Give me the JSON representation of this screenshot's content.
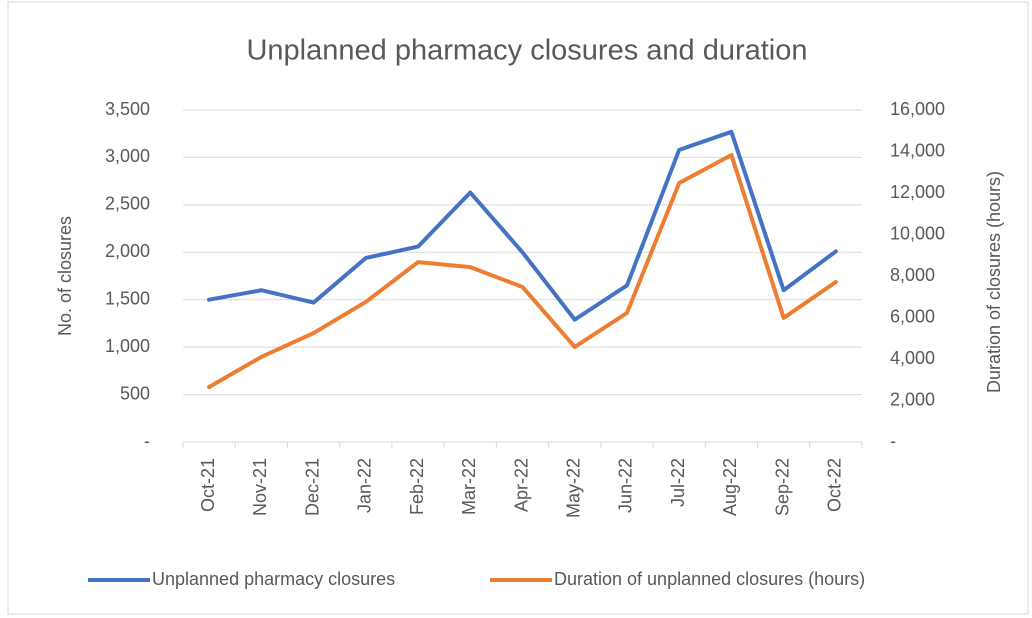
{
  "chart_data": {
    "type": "line",
    "title": "Unplanned pharmacy closures and duration",
    "y_label": "No. of closures",
    "y2_label": "Duration of closures (hours)",
    "categories": [
      "Oct-21",
      "Nov-21",
      "Dec-21",
      "Jan-22",
      "Feb-22",
      "Mar-22",
      "Apr-22",
      "May-22",
      "Jun-22",
      "Jul-22",
      "Aug-22",
      "Sep-22",
      "Oct-22"
    ],
    "series": [
      {
        "name": "Unplanned pharmacy closures",
        "color": "#4472c4",
        "axis": "y",
        "values": [
          1500,
          1600,
          1470,
          1940,
          2060,
          2630,
          2000,
          1290,
          1650,
          3080,
          3270,
          1600,
          2010
        ]
      },
      {
        "name": "Duration of unplanned closures (hours)",
        "color": "#ed7d31",
        "axis": "y2",
        "values": [
          2650,
          4100,
          5250,
          6750,
          8670,
          8430,
          7470,
          4580,
          6220,
          12480,
          13830,
          5980,
          7710
        ]
      }
    ],
    "ylim": [
      0,
      3500
    ],
    "yticks": [
      {
        "value": 0,
        "label": "-"
      },
      500,
      {
        "value": 1000,
        "label": "1,000"
      },
      {
        "value": 1500,
        "label": "1,500"
      },
      {
        "value": 2000,
        "label": "2,000"
      },
      {
        "value": 2500,
        "label": "2,500"
      },
      {
        "value": 3000,
        "label": "3,000"
      },
      {
        "value": 3500,
        "label": "3,500"
      }
    ],
    "y2lim": [
      0,
      16000
    ],
    "y2ticks": [
      {
        "value": 0,
        "label": "-"
      },
      {
        "value": 2000,
        "label": "2,000"
      },
      {
        "value": 4000,
        "label": "4,000"
      },
      {
        "value": 6000,
        "label": "6,000"
      },
      {
        "value": 8000,
        "label": "8,000"
      },
      {
        "value": 10000,
        "label": "10,000"
      },
      {
        "value": 12000,
        "label": "12,000"
      },
      {
        "value": 14000,
        "label": "14,000"
      },
      {
        "value": 16000,
        "label": "16,000"
      }
    ],
    "grid": true,
    "legend": "bottom"
  }
}
